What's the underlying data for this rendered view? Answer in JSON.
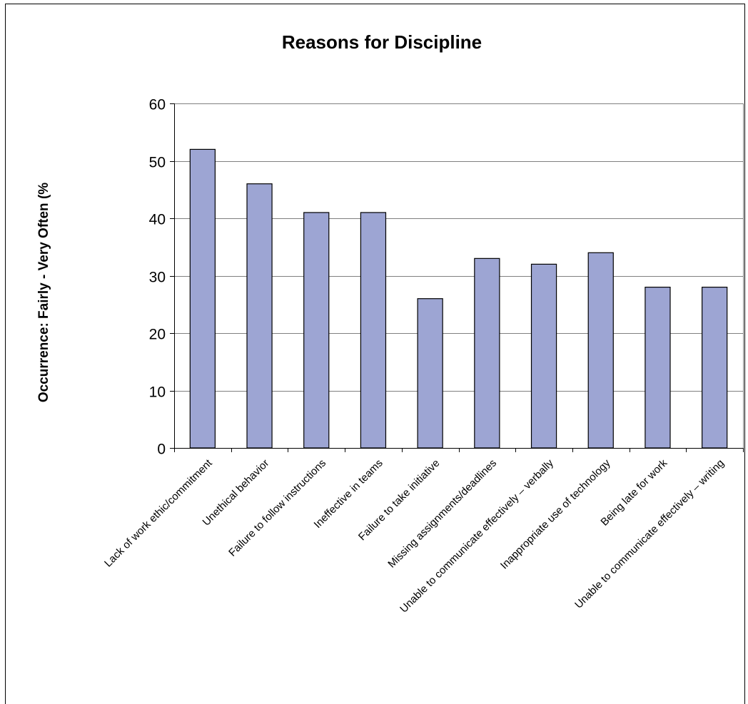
{
  "chart_data": {
    "type": "bar",
    "title": "Reasons for Discipline",
    "xlabel": "",
    "ylabel": "Occurrence:  Fairly - Very Often (%",
    "ylim": [
      0,
      60
    ],
    "yticks": [
      0,
      10,
      20,
      30,
      40,
      50,
      60
    ],
    "grid": true,
    "legend": "none",
    "categories": [
      "Lack of work ethic/commitment",
      "Unethical behavior",
      "Failure to follow instructions",
      "Ineffective in teams",
      "Failure to take initiative",
      "Missing assignments/deadlines",
      "Unable to communicate effectively – verbally",
      "Inappropriate use of technology",
      "Being late for work",
      "Unable to communicate effectively – writing"
    ],
    "values": [
      52,
      46,
      41,
      41,
      26,
      33,
      32,
      34,
      28,
      28
    ],
    "colors": {
      "bar_fill": "#9da5d3",
      "bar_stroke": "#000000",
      "grid": "#808080",
      "axis": "#808080"
    }
  }
}
